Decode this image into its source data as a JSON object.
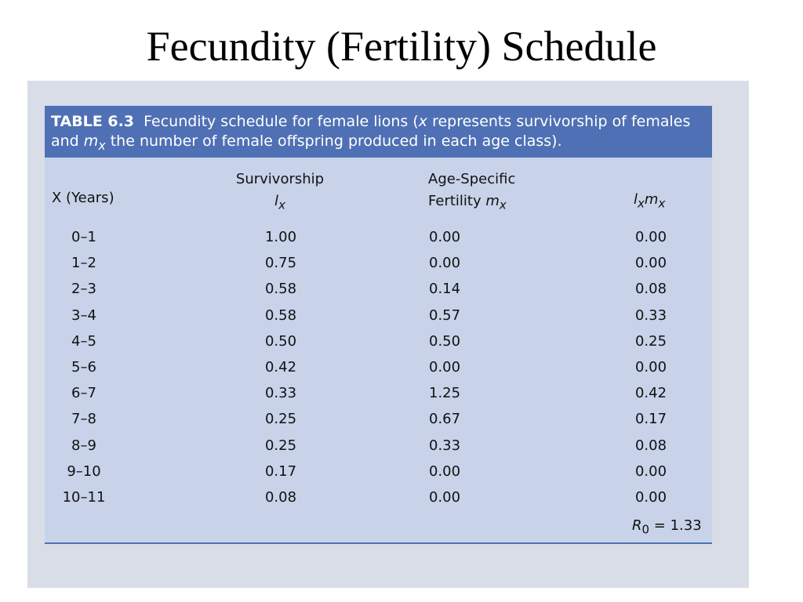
{
  "title": "Fecundity (Fertility) Schedule",
  "table": {
    "label": "TABLE 6.3",
    "caption": [
      "Fecundity schedule for female lions (",
      "x",
      " represents survivorship of females and ",
      "m",
      "x",
      " the number of female offspring produced in each age class)."
    ],
    "headers": {
      "age": "X (Years)",
      "surv": [
        "Survivorship",
        "l",
        "x"
      ],
      "fert": [
        "Age-Specific",
        "Fertility ",
        "m",
        "x"
      ],
      "prod": [
        "l",
        "x",
        "m",
        "x"
      ]
    },
    "rows": [
      [
        "0–1",
        "1.00",
        "0.00",
        "0.00"
      ],
      [
        "1–2",
        "0.75",
        "0.00",
        "0.00"
      ],
      [
        "2–3",
        "0.58",
        "0.14",
        "0.08"
      ],
      [
        "3–4",
        "0.58",
        "0.57",
        "0.33"
      ],
      [
        "4–5",
        "0.50",
        "0.50",
        "0.25"
      ],
      [
        "5–6",
        "0.42",
        "0.00",
        "0.00"
      ],
      [
        "6–7",
        "0.33",
        "1.25",
        "0.42"
      ],
      [
        "7–8",
        "0.25",
        "0.67",
        "0.17"
      ],
      [
        "8–9",
        "0.25",
        "0.33",
        "0.08"
      ],
      [
        "9–10",
        "0.17",
        "0.00",
        "0.00"
      ],
      [
        "10–11",
        "0.08",
        "0.00",
        "0.00"
      ]
    ],
    "footer": [
      "R",
      "0",
      " = 1.33"
    ]
  }
}
